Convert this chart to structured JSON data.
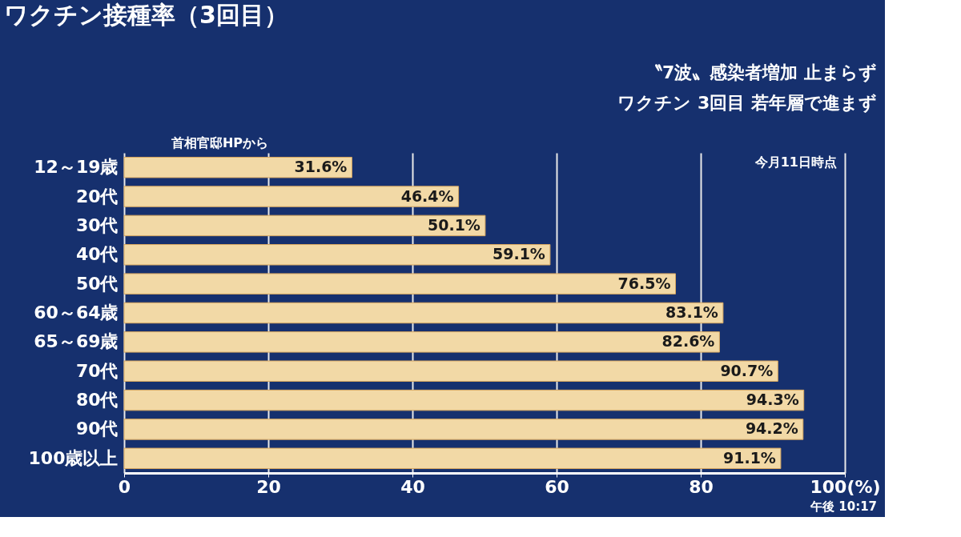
{
  "chart_data": {
    "type": "bar",
    "orientation": "horizontal",
    "title": "ワクチン接種率（3回目）",
    "categories": [
      "12～19歳",
      "20代",
      "30代",
      "40代",
      "50代",
      "60～64歳",
      "65～69歳",
      "70代",
      "80代",
      "90代",
      "100歳以上"
    ],
    "values": [
      31.6,
      46.4,
      50.1,
      59.1,
      76.5,
      83.1,
      82.6,
      90.7,
      94.3,
      94.2,
      91.1
    ],
    "value_labels": [
      "31.6%",
      "46.4%",
      "50.1%",
      "59.1%",
      "76.5%",
      "83.1%",
      "82.6%",
      "90.7%",
      "94.3%",
      "94.2%",
      "91.1%"
    ],
    "color": "#f2d9a6",
    "xlim": [
      0,
      100
    ],
    "xticks": [
      0,
      20,
      40,
      60,
      80,
      {
        "value": 100,
        "label": "100(%)"
      }
    ],
    "grid": "x",
    "annotations": [
      "首相官邸HPから",
      "〝7波〟感染者増加 止まらず",
      "ワクチン 3回目 若年層で進まず",
      "今月11日時点",
      "午後 10:17"
    ]
  }
}
